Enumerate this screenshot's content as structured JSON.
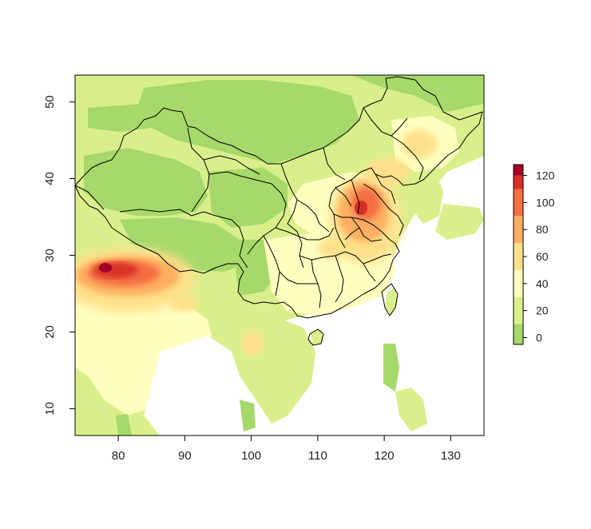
{
  "map": {
    "x_axis": {
      "ticks": [
        "80",
        "90",
        "100",
        "110",
        "120",
        "130"
      ],
      "range": [
        73.5,
        135
      ]
    },
    "y_axis": {
      "ticks": [
        "10",
        "20",
        "30",
        "40",
        "50"
      ],
      "range": [
        6.5,
        53.5
      ]
    },
    "colorbar": {
      "ticks": [
        "0",
        "20",
        "40",
        "60",
        "80",
        "100",
        "120"
      ],
      "range": [
        -5,
        128
      ],
      "colors": [
        "#a6d96a",
        "#d9ef8b",
        "#ffffbf",
        "#fee08b",
        "#fdae61",
        "#f46d43",
        "#d73027",
        "#a50026"
      ]
    }
  }
}
